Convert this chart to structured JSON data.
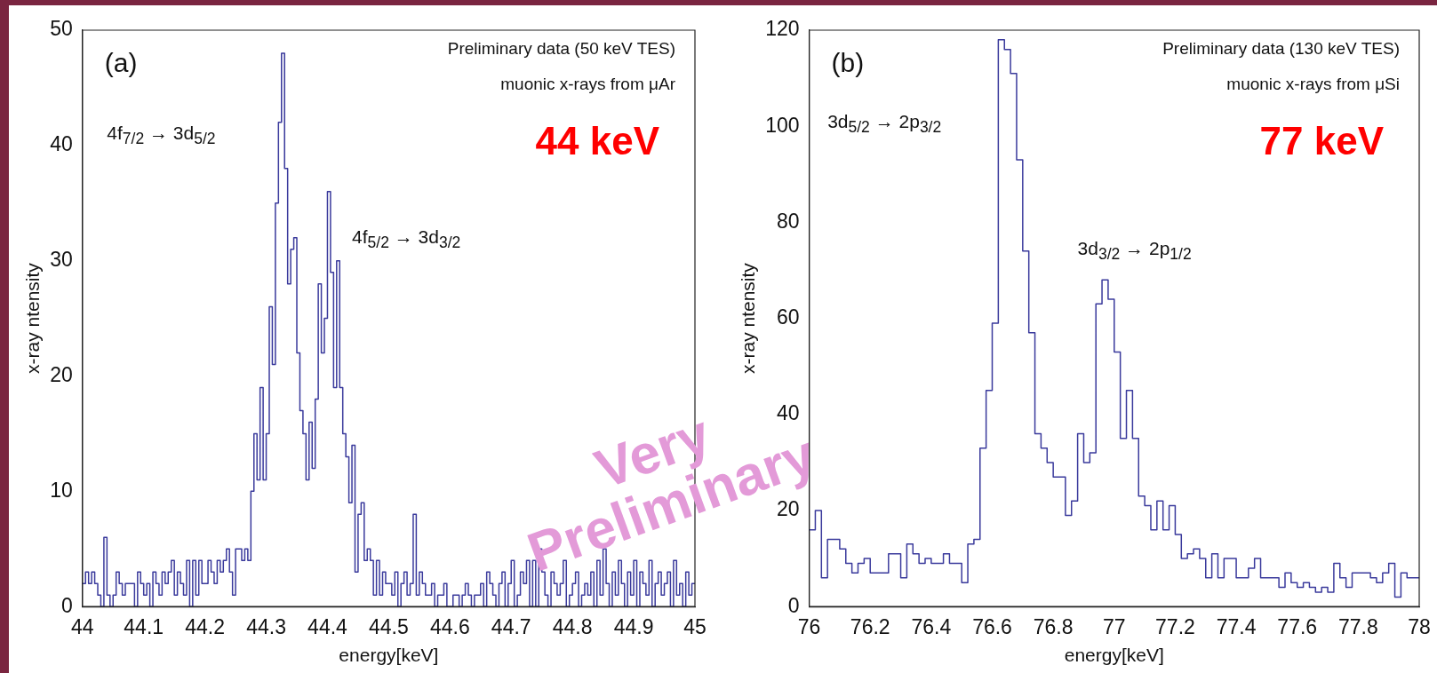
{
  "chart_data": [
    {
      "type": "histogram",
      "xlabel": "energy[keV]",
      "ylabel": "x-ray ntensity",
      "color": "#3a3a9c",
      "annotations": [
        "(a)",
        "Preliminary data (50  keV TES)",
        "muonic x-rays from μAr",
        "44 keV",
        "Very Preliminary",
        "4f$_{7/2}$ → 3d$_{5/2}$",
        "4f$_{5/2}$ → 3d$_{3/2}$"
      ],
      "bins": [
        44,
        44.005,
        44.01,
        44.015,
        44.02,
        44.025,
        44.03,
        44.035,
        44.04,
        44.045,
        44.05,
        44.055,
        44.06,
        44.065,
        44.07,
        44.075,
        44.08,
        44.085,
        44.09,
        44.095,
        44.1,
        44.105,
        44.11,
        44.115,
        44.12,
        44.125,
        44.13,
        44.135,
        44.14,
        44.145,
        44.15,
        44.155,
        44.16,
        44.165,
        44.17,
        44.175,
        44.18,
        44.185,
        44.19,
        44.195,
        44.2,
        44.205,
        44.21,
        44.215,
        44.22,
        44.225,
        44.23,
        44.235,
        44.24,
        44.245,
        44.25,
        44.255,
        44.26,
        44.265,
        44.27,
        44.275,
        44.28,
        44.285,
        44.29,
        44.295,
        44.3,
        44.305,
        44.31,
        44.315,
        44.32,
        44.325,
        44.33,
        44.335,
        44.34,
        44.345,
        44.35,
        44.355,
        44.36,
        44.365,
        44.37,
        44.375,
        44.38,
        44.385,
        44.39,
        44.395,
        44.4,
        44.405,
        44.41,
        44.415,
        44.42,
        44.425,
        44.43,
        44.435,
        44.44,
        44.445,
        44.45,
        44.455,
        44.46,
        44.465,
        44.47,
        44.475,
        44.48,
        44.485,
        44.49,
        44.495,
        44.5,
        44.505,
        44.51,
        44.515,
        44.52,
        44.525,
        44.53,
        44.535,
        44.54,
        44.545,
        44.55,
        44.555,
        44.56,
        44.565,
        44.57,
        44.575,
        44.58,
        44.585,
        44.59,
        44.595,
        44.6,
        44.605,
        44.61,
        44.615,
        44.62,
        44.625,
        44.63,
        44.635,
        44.64,
        44.645,
        44.65,
        44.655,
        44.66,
        44.665,
        44.67,
        44.675,
        44.68,
        44.685,
        44.69,
        44.695,
        44.7,
        44.705,
        44.71,
        44.715,
        44.72,
        44.725,
        44.73,
        44.735,
        44.74,
        44.745,
        44.75,
        44.755,
        44.76,
        44.765,
        44.77,
        44.775,
        44.78,
        44.785,
        44.79,
        44.795,
        44.8,
        44.805,
        44.81,
        44.815,
        44.82,
        44.825,
        44.83,
        44.835,
        44.84,
        44.845,
        44.85,
        44.855,
        44.86,
        44.865,
        44.87,
        44.875,
        44.88,
        44.885,
        44.89,
        44.895,
        44.9,
        44.905,
        44.91,
        44.915,
        44.92,
        44.925,
        44.93,
        44.935,
        44.94,
        44.945,
        44.95,
        44.955,
        44.96,
        44.965,
        44.97,
        44.975,
        44.98,
        44.985,
        44.99,
        44.995,
        45
      ],
      "values": [
        2,
        3,
        2,
        3,
        2,
        1,
        0,
        6,
        1,
        0,
        1,
        3,
        2,
        1,
        2,
        2,
        2,
        0,
        3,
        2,
        1,
        2,
        0,
        3,
        2,
        1,
        3,
        2,
        3,
        4,
        1,
        3,
        2,
        1,
        4,
        0,
        4,
        1,
        4,
        2,
        2,
        4,
        3,
        2,
        4,
        3,
        4,
        5,
        3,
        1,
        5,
        5,
        4,
        5,
        4,
        10,
        15,
        11,
        19,
        11,
        15,
        26,
        21,
        35,
        42,
        48,
        38,
        28,
        31,
        32,
        22,
        17,
        15,
        11,
        16,
        12,
        18,
        28,
        22,
        25,
        36,
        29,
        19,
        30,
        19,
        15,
        13,
        9,
        14,
        3,
        8,
        9,
        4,
        5,
        4,
        1,
        4,
        1,
        3,
        2,
        2,
        1,
        3,
        0,
        2,
        3,
        1,
        2,
        8,
        1,
        3,
        2,
        1,
        1,
        2,
        0,
        1,
        1,
        2,
        0,
        0,
        1,
        1,
        0,
        1,
        2,
        1,
        0,
        1,
        1,
        2,
        0,
        3,
        2,
        1,
        0,
        2,
        3,
        0,
        2,
        4,
        0,
        1,
        3,
        2,
        4,
        0,
        4,
        0,
        5,
        3,
        1,
        0,
        3,
        2,
        1,
        2,
        4,
        0,
        1,
        2,
        3,
        0,
        1,
        2,
        1,
        3,
        0,
        4,
        1,
        5,
        2,
        0,
        3,
        1,
        4,
        2,
        0,
        3,
        1,
        4,
        0,
        3,
        2,
        1,
        4,
        0,
        2,
        3,
        1,
        2,
        3,
        0,
        4,
        1,
        2,
        0,
        3,
        1,
        2
      ],
      "xlim": [
        44,
        45
      ],
      "xticks": [
        44,
        44.1,
        44.2,
        44.3,
        44.4,
        44.5,
        44.6,
        44.7,
        44.8,
        44.9,
        45
      ],
      "ylim": [
        0,
        50
      ],
      "yticks": [
        0,
        10,
        20,
        30,
        40,
        50
      ],
      "legend": false,
      "grid": false
    },
    {
      "type": "histogram",
      "xlabel": "energy[keV]",
      "ylabel": "x-ray ntensity",
      "color": "#3a3a9c",
      "annotations": [
        "(b)",
        "Preliminary data (130  keV TES)",
        "muonic x-rays from μSi",
        "77 keV",
        "3d$_{5/2}$ → 2p$_{3/2}$",
        "3d$_{3/2}$ → 2p$_{1/2}$"
      ],
      "bins": [
        76,
        76.02,
        76.04,
        76.06,
        76.08,
        76.1,
        76.12,
        76.14,
        76.16,
        76.18,
        76.2,
        76.22,
        76.24,
        76.26,
        76.28,
        76.3,
        76.32,
        76.34,
        76.36,
        76.38,
        76.4,
        76.42,
        76.44,
        76.46,
        76.48,
        76.5,
        76.52,
        76.54,
        76.56,
        76.58,
        76.6,
        76.62,
        76.64,
        76.66,
        76.68,
        76.7,
        76.72,
        76.74,
        76.76,
        76.78,
        76.8,
        76.82,
        76.84,
        76.86,
        76.88,
        76.9,
        76.92,
        76.94,
        76.96,
        76.98,
        77,
        77.02,
        77.04,
        77.06,
        77.08,
        77.1,
        77.12,
        77.14,
        77.16,
        77.18,
        77.2,
        77.22,
        77.24,
        77.26,
        77.28,
        77.3,
        77.32,
        77.34,
        77.36,
        77.38,
        77.4,
        77.42,
        77.44,
        77.46,
        77.48,
        77.5,
        77.52,
        77.54,
        77.56,
        77.58,
        77.6,
        77.62,
        77.64,
        77.66,
        77.68,
        77.7,
        77.72,
        77.74,
        77.76,
        77.78,
        77.8,
        77.82,
        77.84,
        77.86,
        77.88,
        77.9,
        77.92,
        77.94,
        77.96,
        77.98,
        78
      ],
      "values": [
        16,
        20,
        6,
        14,
        14,
        12,
        9,
        7,
        9,
        10,
        7,
        7,
        7,
        11,
        11,
        6,
        13,
        11,
        9,
        10,
        9,
        9,
        11,
        9,
        9,
        5,
        13,
        14,
        33,
        45,
        59,
        118,
        116,
        111,
        93,
        74,
        57,
        36,
        33,
        30,
        27,
        27,
        19,
        22,
        36,
        30,
        32,
        63,
        68,
        64,
        53,
        35,
        45,
        35,
        23,
        21,
        16,
        22,
        16,
        21,
        15,
        10,
        11,
        12,
        10,
        6,
        11,
        6,
        10,
        10,
        6,
        6,
        8,
        10,
        6,
        6,
        6,
        4,
        7,
        5,
        4,
        5,
        4,
        3,
        4,
        3,
        9,
        6,
        4,
        7,
        7,
        7,
        6,
        5,
        7,
        9,
        2,
        7,
        6,
        6
      ],
      "xlim": [
        76,
        78
      ],
      "xticks": [
        76,
        76.2,
        76.4,
        76.6,
        76.8,
        77,
        77.2,
        77.4,
        77.6,
        77.8,
        78
      ],
      "ylim": [
        0,
        120
      ],
      "yticks": [
        0,
        20,
        40,
        60,
        80,
        100,
        120
      ],
      "legend": false,
      "grid": false
    }
  ]
}
